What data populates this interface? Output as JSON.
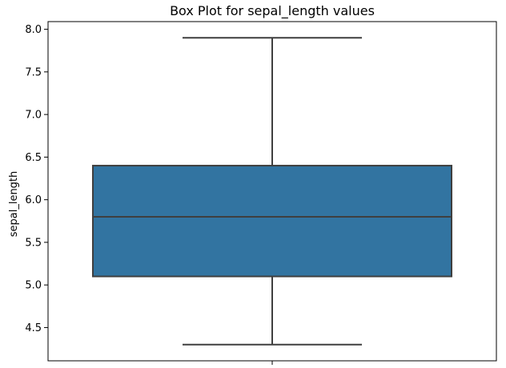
{
  "chart_data": {
    "type": "box",
    "title": "Box Plot for sepal_length values",
    "xlabel": "",
    "ylabel": "sepal_length",
    "ylim": [
      4.11,
      8.09
    ],
    "yticks": [
      4.5,
      5.0,
      5.5,
      6.0,
      6.5,
      7.0,
      7.5,
      8.0
    ],
    "ytick_labels": [
      "4.5",
      "5.0",
      "5.5",
      "6.0",
      "6.5",
      "7.0",
      "7.5",
      "8.0"
    ],
    "categories": [
      ""
    ],
    "box": {
      "whisker_low": 4.3,
      "q1": 5.1,
      "median": 5.8,
      "q3": 6.4,
      "whisker_high": 7.9
    },
    "colors": {
      "box_fill": "#3274a1",
      "line": "#3f3f3f",
      "axis": "#000000"
    },
    "grid": false
  }
}
